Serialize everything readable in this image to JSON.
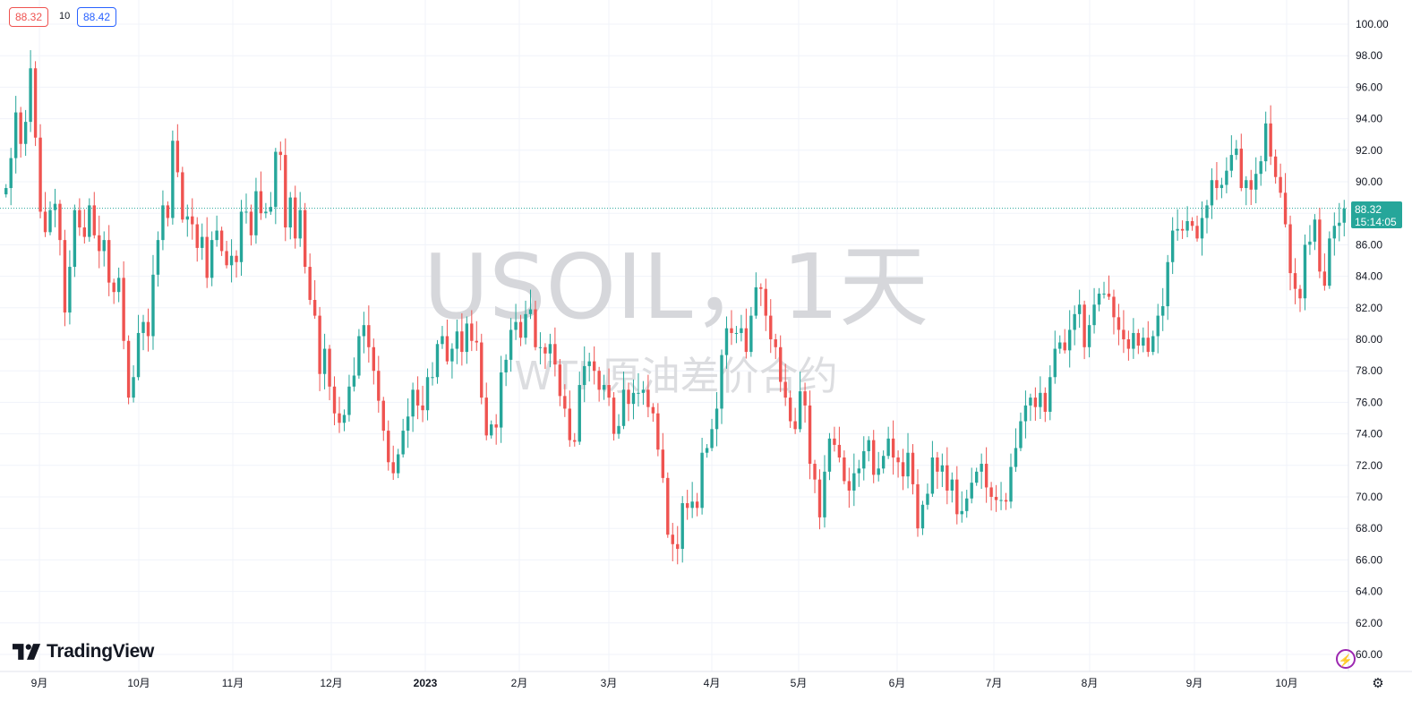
{
  "symbol": {
    "watermark_title": "USOIL，1天",
    "watermark_subtitle": "WTI 原油差价合约"
  },
  "quote_bar": {
    "bid": "88.32",
    "spread": "10",
    "ask": "88.42"
  },
  "last_price": {
    "price": "88.32",
    "countdown": "15:14:05"
  },
  "logo_text": "TradingView",
  "colors": {
    "up": "#26a69a",
    "down": "#ef5350",
    "grid": "#f0f3fa",
    "axis_text": "#131722",
    "watermark": "#d6d7db"
  },
  "chart_data": {
    "type": "candlestick",
    "title": "",
    "xlabel": "",
    "ylabel": "",
    "ylim": [
      59,
      101
    ],
    "y_ticks": [
      "100.00",
      "98.00",
      "96.00",
      "94.00",
      "92.00",
      "90.00",
      "88.00",
      "86.00",
      "84.00",
      "82.00",
      "80.00",
      "78.00",
      "76.00",
      "74.00",
      "72.00",
      "70.00",
      "68.00",
      "66.00",
      "64.00",
      "62.00",
      "60.00"
    ],
    "x_ticks": [
      "9月",
      "10月",
      "11月",
      "12月",
      "2023",
      "2月",
      "3月",
      "4月",
      "5月",
      "6月",
      "7月",
      "8月",
      "9月",
      "10月"
    ],
    "grid": true,
    "last_price_line": 88.32,
    "closes": [
      89.6,
      91.5,
      94.4,
      92.4,
      93.8,
      97.2,
      92.8,
      88.1,
      86.8,
      88.2,
      88.6,
      86.3,
      81.7,
      84.6,
      88.2,
      87.1,
      86.5,
      88.5,
      86.6,
      85.6,
      86.3,
      83.6,
      83.0,
      83.9,
      79.9,
      76.3,
      77.6,
      80.4,
      81.1,
      80.2,
      84.1,
      86.3,
      88.5,
      87.7,
      92.6,
      90.6,
      87.6,
      87.8,
      87.3,
      85.8,
      86.5,
      83.9,
      86.3,
      86.9,
      85.6,
      84.7,
      85.3,
      84.9,
      88.1,
      88.1,
      86.6,
      89.4,
      88.0,
      88.1,
      88.4,
      91.9,
      91.7,
      87.1,
      89.0,
      86.4,
      88.2,
      84.6,
      82.5,
      81.5,
      77.8,
      79.4,
      77.0,
      75.3,
      74.7,
      75.2,
      77.0,
      77.7,
      80.2,
      80.9,
      79.5,
      78.0,
      76.1,
      74.2,
      72.2,
      71.5,
      72.7,
      74.2,
      75.1,
      76.8,
      75.8,
      75.5,
      77.6,
      77.6,
      79.7,
      80.2,
      78.6,
      79.4,
      80.5,
      79.2,
      81.0,
      79.9,
      79.8,
      76.3,
      73.9,
      74.6,
      74.4,
      77.9,
      78.7,
      80.6,
      81.1,
      80.1,
      81.6,
      81.9,
      79.5,
      79.5,
      79.1,
      79.7,
      78.4,
      76.4,
      75.6,
      73.6,
      73.5,
      77.1,
      78.3,
      78.6,
      78.0,
      76.8,
      77.1,
      76.3,
      74.0,
      74.5,
      76.8,
      75.9,
      76.6,
      76.6,
      76.8,
      75.7,
      75.3,
      73.0,
      71.2,
      67.6,
      67.0,
      66.7,
      69.6,
      69.3,
      69.7,
      69.3,
      72.8,
      73.1,
      74.3,
      75.6,
      79.0,
      80.7,
      80.4,
      80.4,
      80.7,
      79.2,
      81.5,
      83.3,
      83.2,
      81.5,
      80.0,
      79.5,
      77.3,
      76.3,
      74.8,
      74.3,
      76.7,
      75.8,
      72.1,
      71.1,
      68.7,
      71.6,
      73.7,
      73.3,
      72.5,
      71.0,
      70.4,
      71.5,
      71.8,
      72.9,
      73.6,
      71.4,
      71.8,
      72.6,
      73.7,
      72.5,
      72.2,
      71.3,
      72.8,
      70.8,
      68.0,
      69.5,
      70.2,
      72.5,
      71.6,
      72.0,
      70.4,
      71.1,
      68.9,
      69.1,
      69.9,
      70.9,
      71.6,
      72.1,
      70.6,
      70.0,
      69.8,
      69.8,
      69.7,
      71.9,
      73.1,
      74.8,
      75.8,
      76.3,
      75.7,
      76.6,
      75.4,
      77.6,
      79.4,
      79.8,
      79.3,
      80.6,
      81.6,
      82.2,
      79.5,
      80.9,
      82.2,
      82.9,
      82.9,
      82.7,
      81.4,
      80.6,
      80.0,
      79.4,
      80.4,
      79.6,
      80.1,
      79.2,
      80.2,
      81.5,
      82.1,
      84.9,
      86.9,
      87.0,
      86.9,
      87.5,
      87.2,
      86.4,
      87.7,
      88.5,
      90.1,
      89.6,
      89.8,
      90.7,
      91.7,
      92.1,
      89.6,
      90.1,
      89.5,
      90.5,
      91.3,
      93.7,
      91.6,
      90.3,
      89.3,
      87.3,
      84.2,
      83.2,
      82.6,
      86.0,
      86.2,
      87.6,
      84.3,
      83.4,
      86.4,
      87.2,
      87.4,
      88.3
    ]
  }
}
